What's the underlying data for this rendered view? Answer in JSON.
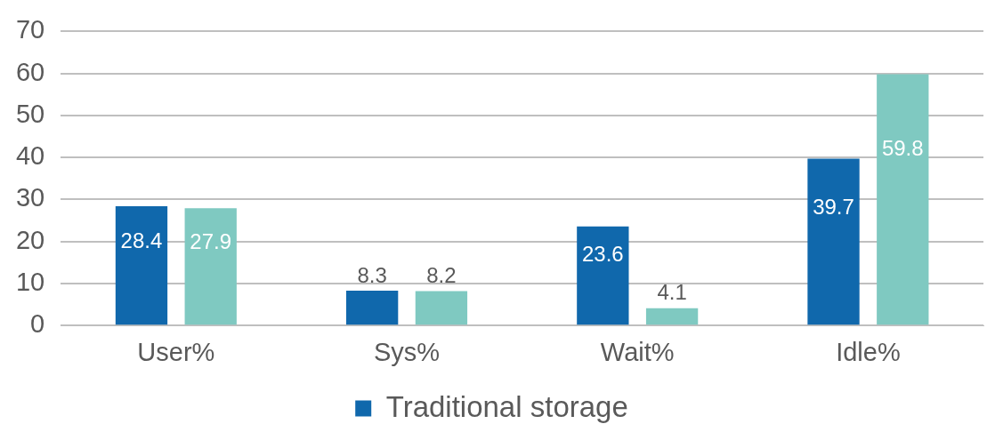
{
  "chart_data": {
    "type": "bar",
    "categories": [
      "User%",
      "Sys%",
      "Wait%",
      "Idle%"
    ],
    "series": [
      {
        "name": "Traditional storage",
        "color": "#1068ac",
        "values": [
          28.4,
          8.3,
          23.6,
          39.7
        ]
      },
      {
        "color": "#7fc9c1",
        "values": [
          27.9,
          8.2,
          4.1,
          59.8
        ]
      }
    ],
    "ylim": [
      0,
      70
    ],
    "yticks": [
      0,
      10,
      20,
      30,
      40,
      50,
      60,
      70
    ],
    "grid": "y",
    "legend": "bottom",
    "data_labels": true
  }
}
